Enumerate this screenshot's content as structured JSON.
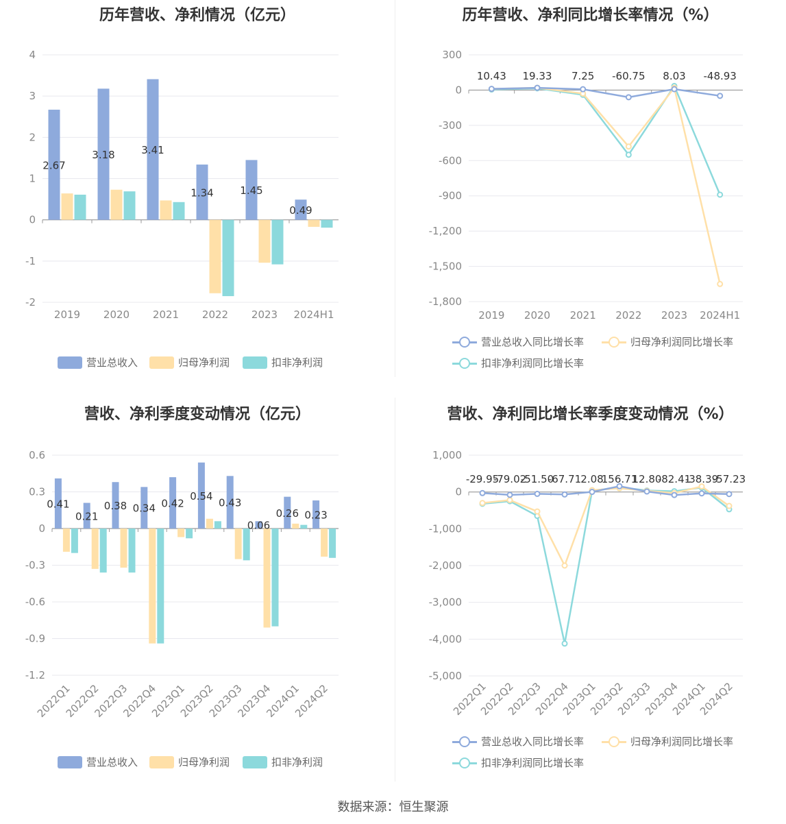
{
  "source": "数据来源：恒生聚源",
  "colors": {
    "revenue": "#8eaadc",
    "net_profit": "#ffe0a8",
    "deducted_profit": "#8cd9dc"
  },
  "chart_data": [
    {
      "id": "annual-values",
      "type": "bar",
      "title": "历年营收、净利情况（亿元）",
      "categories": [
        "2019",
        "2020",
        "2021",
        "2022",
        "2023",
        "2024H1"
      ],
      "ylim": [
        -2,
        4
      ],
      "yticks": [
        4,
        3,
        2,
        1,
        0,
        -1,
        -2
      ],
      "ytick_labels": [
        "4",
        "3",
        "2",
        "1",
        "0",
        "-1",
        "-2"
      ],
      "legend": [
        "营业总收入",
        "归母净利润",
        "扣非净利润"
      ],
      "series": [
        {
          "name": "营业总收入",
          "values": [
            2.67,
            3.18,
            3.41,
            1.34,
            1.45,
            0.49
          ],
          "labels": [
            "2.67",
            "3.18",
            "3.41",
            "1.34",
            "1.45",
            "0.49"
          ]
        },
        {
          "name": "归母净利润",
          "values": [
            0.64,
            0.73,
            0.47,
            -1.78,
            -1.04,
            -0.17
          ]
        },
        {
          "name": "扣非净利润",
          "values": [
            0.61,
            0.69,
            0.43,
            -1.85,
            -1.08,
            -0.19
          ]
        }
      ]
    },
    {
      "id": "annual-growth",
      "type": "line",
      "title": "历年营收、净利同比增长率情况（%）",
      "categories": [
        "2019",
        "2020",
        "2021",
        "2022",
        "2023",
        "2024H1"
      ],
      "ylim": [
        -1800,
        300
      ],
      "yticks": [
        300,
        0,
        -300,
        -600,
        -900,
        -1200,
        -1500,
        -1800
      ],
      "ytick_labels": [
        "300",
        "0",
        "-300",
        "-600",
        "-900",
        "-1,200",
        "-1,500",
        "-1,800"
      ],
      "legend": [
        "营业总收入同比增长率",
        "归母净利润同比增长率",
        "扣非净利润同比增长率"
      ],
      "series": [
        {
          "name": "营业总收入同比增长率",
          "values": [
            10.43,
            19.33,
            7.25,
            -60.75,
            8.03,
            -48.93
          ],
          "labels": [
            "10.43",
            "19.33",
            "7.25",
            "-60.75",
            "8.03",
            "-48.93"
          ]
        },
        {
          "name": "归母净利润同比增长率",
          "values": [
            10,
            20,
            -30,
            -480,
            20,
            -1650
          ]
        },
        {
          "name": "扣非净利润同比增长率",
          "values": [
            5,
            15,
            -40,
            -550,
            35,
            -890
          ]
        }
      ]
    },
    {
      "id": "quarterly-values",
      "type": "bar",
      "title": "营收、净利季度变动情况（亿元）",
      "categories": [
        "2022Q1",
        "2022Q2",
        "2022Q3",
        "2022Q4",
        "2023Q1",
        "2023Q2",
        "2023Q3",
        "2023Q4",
        "2024Q1",
        "2024Q2"
      ],
      "ylim": [
        -1.2,
        0.6
      ],
      "yticks": [
        0.6,
        0.3,
        0,
        -0.3,
        -0.6,
        -0.9,
        -1.2
      ],
      "ytick_labels": [
        "0.6",
        "0.3",
        "0",
        "-0.3",
        "-0.6",
        "-0.9",
        "-1.2"
      ],
      "legend": [
        "营业总收入",
        "归母净利润",
        "扣非净利润"
      ],
      "series": [
        {
          "name": "营业总收入",
          "values": [
            0.41,
            0.21,
            0.38,
            0.34,
            0.42,
            0.54,
            0.43,
            0.06,
            0.26,
            0.23
          ],
          "labels": [
            "0.41",
            "0.21",
            "0.38",
            "0.34",
            "0.42",
            "0.54",
            "0.43",
            "0.06",
            "0.26",
            "0.23"
          ]
        },
        {
          "name": "归母净利润",
          "values": [
            -0.19,
            -0.33,
            -0.32,
            -0.94,
            -0.07,
            0.08,
            -0.25,
            -0.81,
            0.04,
            -0.23
          ]
        },
        {
          "name": "扣非净利润",
          "values": [
            -0.2,
            -0.36,
            -0.36,
            -0.94,
            -0.08,
            0.06,
            -0.26,
            -0.8,
            0.03,
            -0.24
          ]
        }
      ]
    },
    {
      "id": "quarterly-growth",
      "type": "line",
      "title": "营收、净利同比增长率季度变动情况（%）",
      "categories": [
        "2022Q1",
        "2022Q2",
        "2022Q3",
        "2022Q4",
        "2023Q1",
        "2023Q2",
        "2023Q3",
        "2023Q4",
        "2024Q1",
        "2024Q2"
      ],
      "ylim": [
        -5000,
        1000
      ],
      "yticks": [
        1000,
        0,
        -1000,
        -2000,
        -3000,
        -4000,
        -5000
      ],
      "ytick_labels": [
        "1,000",
        "0",
        "-1,000",
        "-2,000",
        "-3,000",
        "-4,000",
        "-5,000"
      ],
      "legend": [
        "营业总收入同比增长率",
        "归母净利润同比增长率",
        "扣非净利润同比增长率"
      ],
      "series": [
        {
          "name": "营业总收入同比增长率",
          "values": [
            -29.95,
            -79.02,
            -51.5,
            -67.71,
            2.08,
            156.71,
            12.8,
            -82.41,
            -38.39,
            -57.23
          ],
          "labels": [
            "-29.95",
            "-79.02",
            "-51.50",
            "-67.71",
            "2.08",
            "156.71",
            "12.80",
            "-82.41",
            "-38.39",
            "-57.23"
          ]
        },
        {
          "name": "归母净利润同比增长率",
          "values": [
            -300,
            -220,
            -530,
            -2000,
            50,
            100,
            30,
            -30,
            150,
            -380
          ]
        },
        {
          "name": "扣非净利润同比增长率",
          "values": [
            -320,
            -250,
            -650,
            -4120,
            30,
            130,
            40,
            20,
            120,
            -470
          ]
        }
      ]
    }
  ]
}
